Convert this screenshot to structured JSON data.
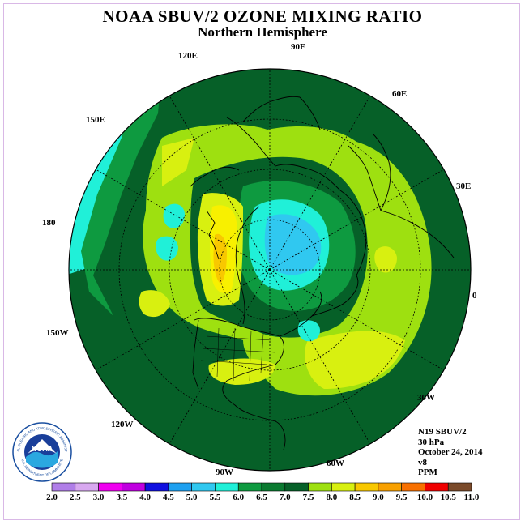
{
  "title": "NOAA SBUV/2 OZONE MIXING RATIO",
  "subtitle": "Northern Hemisphere",
  "longitude_labels": [
    "90E",
    "60E",
    "30E",
    "0",
    "30W",
    "60W",
    "90W",
    "120W",
    "150W",
    "180",
    "150E",
    "120E"
  ],
  "info": {
    "satellite": "N19 SBUV/2",
    "level": "30 hPa",
    "date": "October 24, 2014",
    "version": "v8",
    "units": "PPM"
  },
  "colorbar": {
    "ticks": [
      "2.0",
      "2.5",
      "3.0",
      "3.5",
      "4.0",
      "4.5",
      "5.0",
      "5.5",
      "6.0",
      "6.5",
      "7.0",
      "7.5",
      "8.0",
      "8.5",
      "9.0",
      "9.5",
      "10.0",
      "10.5",
      "11.0"
    ],
    "colors": [
      "#b07ee8",
      "#d8a8f0",
      "#f000f0",
      "#c000e0",
      "#1010e0",
      "#1e7cf0",
      "#1ea0f0",
      "#30c8f0",
      "#20f0d8",
      "#0e9a40",
      "#0a7a30",
      "#066028",
      "#9ee010",
      "#d8f010",
      "#f8f000",
      "#f8c800",
      "#f8a000",
      "#f87000",
      "#f00000",
      "#7a4a2a"
    ]
  },
  "logo": {
    "text": "NOAA",
    "ring_text_top": "NATIONAL OCEANIC AND ATMOSPHERIC ADMINISTRATION",
    "ring_text_bottom": "U.S. DEPARTMENT OF COMMERCE"
  }
}
